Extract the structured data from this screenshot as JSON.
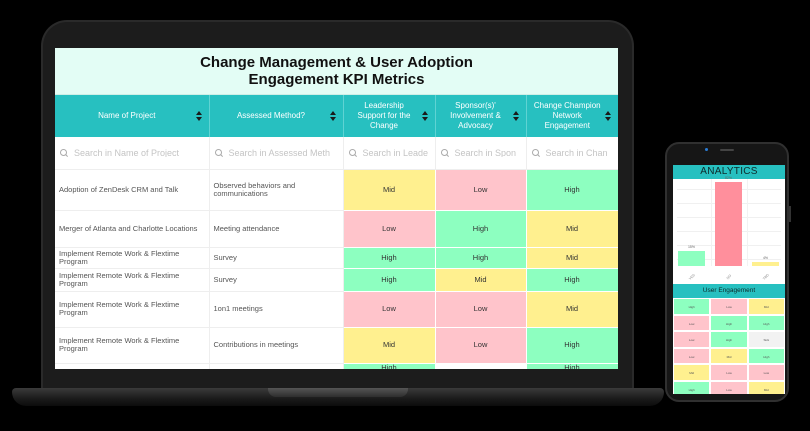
{
  "laptop": {
    "title": "Change Management & User Adoption Engagement KPI Metrics",
    "columns": [
      {
        "label": "Name of Project",
        "search_placeholder": "Search in Name of Project"
      },
      {
        "label": "Assessed Method?",
        "search_placeholder": "Search in Assessed Meth"
      },
      {
        "label": "Leadership Support for the Change",
        "search_placeholder": "Search in Leade"
      },
      {
        "label": "Sponsor(s)' Involvement & Advocacy",
        "search_placeholder": "Search in Spon"
      },
      {
        "label": "Change Champion Network Engagement",
        "search_placeholder": "Search in Chan"
      }
    ],
    "rows": [
      {
        "project": "Adoption of ZenDesk CRM and Talk",
        "method": "Observed behaviors and communications",
        "leadership": "Mid",
        "sponsor": "Low",
        "champion": "High"
      },
      {
        "project": "Merger of Atlanta and Charlotte Locations",
        "method": "Meeting attendance",
        "leadership": "Low",
        "sponsor": "High",
        "champion": "Mid"
      },
      {
        "project": "Implement Remote Work & Flextime Program",
        "method": "Survey",
        "leadership": "High",
        "sponsor": "High",
        "champion": "Mid"
      },
      {
        "project": "Implement Remote Work & Flextime Program",
        "method": "Survey",
        "leadership": "High",
        "sponsor": "Mid",
        "champion": "High"
      },
      {
        "project": "Implement Remote Work & Flextime Program",
        "method": "1on1 meetings",
        "leadership": "Low",
        "sponsor": "Low",
        "champion": "Mid"
      },
      {
        "project": "Implement Remote Work & Flextime Program",
        "method": "Contributions in meetings",
        "leadership": "Mid",
        "sponsor": "Low",
        "champion": "High"
      },
      {
        "project": "",
        "method": "",
        "leadership": "High",
        "sponsor": "",
        "champion": "High"
      }
    ]
  },
  "phone": {
    "analytics_title": "ANALYTICS",
    "chart": {
      "bars": [
        {
          "label": "YES",
          "value_label": "15%",
          "value": 15,
          "color": "#8dffc0"
        },
        {
          "label": "NO",
          "value_label": "82%",
          "value": 82,
          "color": "#ff8f9c"
        },
        {
          "label": "TBD",
          "value_label": "4%",
          "value": 4,
          "color": "#fff08f"
        }
      ]
    },
    "engagement_title": "User Engagement",
    "engagement_cells": [
      "High",
      "Low",
      "Mid",
      "Low",
      "High",
      "High",
      "Low",
      "High",
      "Sick",
      "Low",
      "Mid",
      "High",
      "Mid",
      "Low",
      "Low",
      "High",
      "Low",
      "Mid"
    ]
  },
  "colors": {
    "teal": "#27c0c0",
    "low": "#ffc4cb",
    "mid": "#fff08f",
    "high": "#8dffc0",
    "title_bg": "#e3fdf5"
  }
}
